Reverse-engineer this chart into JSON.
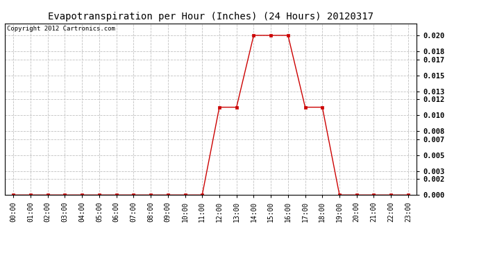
{
  "title": "Evapotranspiration per Hour (Inches) (24 Hours) 20120317",
  "copyright": "Copyright 2012 Cartronics.com",
  "x_labels": [
    "00:00",
    "01:00",
    "02:00",
    "03:00",
    "04:00",
    "05:00",
    "06:00",
    "07:00",
    "08:00",
    "09:00",
    "10:00",
    "11:00",
    "12:00",
    "13:00",
    "14:00",
    "15:00",
    "16:00",
    "17:00",
    "18:00",
    "19:00",
    "20:00",
    "21:00",
    "22:00",
    "23:00"
  ],
  "x_values": [
    0,
    1,
    2,
    3,
    4,
    5,
    6,
    7,
    8,
    9,
    10,
    11,
    12,
    13,
    14,
    15,
    16,
    17,
    18,
    19,
    20,
    21,
    22,
    23
  ],
  "y_values": [
    0.0,
    0.0,
    0.0,
    0.0,
    0.0,
    0.0,
    0.0,
    0.0,
    0.0,
    0.0,
    0.0,
    0.0,
    0.011,
    0.011,
    0.02,
    0.02,
    0.02,
    0.011,
    0.011,
    0.0,
    0.0,
    0.0,
    0.0,
    0.0
  ],
  "y_ticks": [
    0.0,
    0.002,
    0.003,
    0.005,
    0.007,
    0.008,
    0.01,
    0.012,
    0.013,
    0.015,
    0.017,
    0.018,
    0.02
  ],
  "ylim": [
    0.0,
    0.0215
  ],
  "line_color": "#cc0000",
  "marker": "s",
  "marker_size": 2.5,
  "bg_color": "#ffffff",
  "grid_color": "#c0c0c0",
  "title_fontsize": 10,
  "copyright_fontsize": 6.5,
  "tick_fontsize": 7,
  "ytick_fontsize": 7.5
}
